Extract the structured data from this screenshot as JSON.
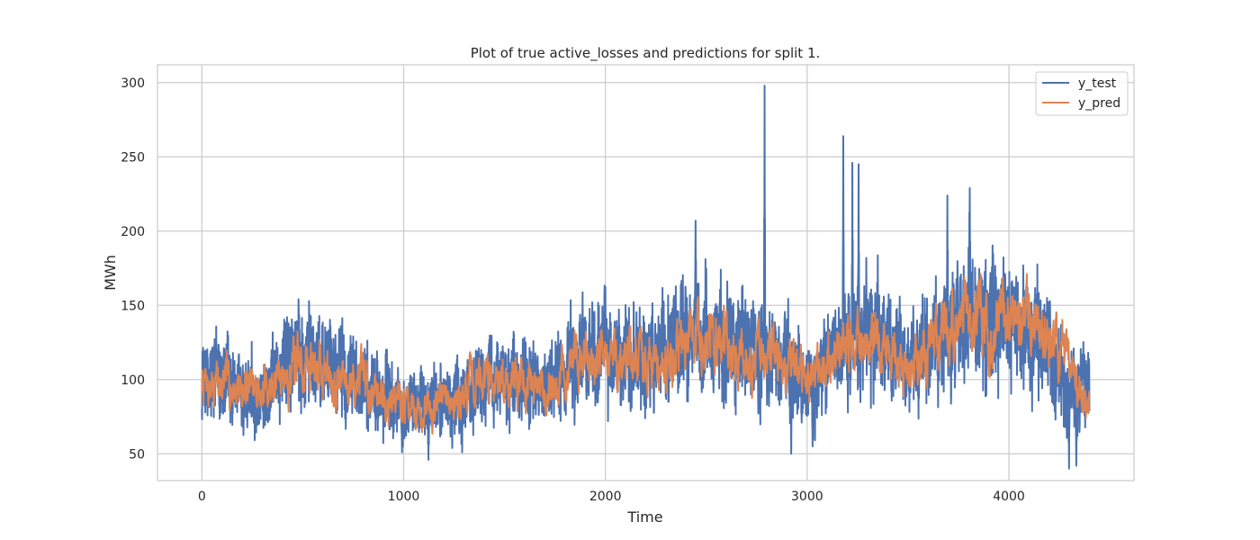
{
  "chart_data": {
    "type": "line",
    "title": "Plot of true active_losses and predictions for split 1.",
    "xlabel": "Time",
    "ylabel": "MWh",
    "xlim": [
      -220,
      4620
    ],
    "ylim": [
      32,
      312
    ],
    "xticks": [
      0,
      1000,
      2000,
      3000,
      4000
    ],
    "yticks": [
      50,
      100,
      150,
      200,
      250,
      300
    ],
    "grid": true,
    "legend_position": "top-right",
    "n_points": 4400,
    "series": [
      {
        "name": "y_test",
        "color": "#4c72b0",
        "anchors": [
          [
            0,
            95
          ],
          [
            100,
            103
          ],
          [
            200,
            90
          ],
          [
            300,
            85
          ],
          [
            400,
            112
          ],
          [
            500,
            118
          ],
          [
            600,
            112
          ],
          [
            700,
            105
          ],
          [
            800,
            95
          ],
          [
            900,
            90
          ],
          [
            1000,
            85
          ],
          [
            1100,
            82
          ],
          [
            1200,
            85
          ],
          [
            1300,
            88
          ],
          [
            1400,
            100
          ],
          [
            1500,
            98
          ],
          [
            1600,
            100
          ],
          [
            1700,
            95
          ],
          [
            1800,
            105
          ],
          [
            1900,
            118
          ],
          [
            2000,
            118
          ],
          [
            2100,
            115
          ],
          [
            2200,
            115
          ],
          [
            2300,
            118
          ],
          [
            2400,
            130
          ],
          [
            2500,
            130
          ],
          [
            2600,
            128
          ],
          [
            2700,
            118
          ],
          [
            2800,
            115
          ],
          [
            2900,
            110
          ],
          [
            3000,
            95
          ],
          [
            3100,
            110
          ],
          [
            3200,
            125
          ],
          [
            3300,
            135
          ],
          [
            3400,
            120
          ],
          [
            3500,
            108
          ],
          [
            3600,
            120
          ],
          [
            3700,
            135
          ],
          [
            3800,
            145
          ],
          [
            3900,
            140
          ],
          [
            4000,
            140
          ],
          [
            4100,
            130
          ],
          [
            4200,
            120
          ],
          [
            4300,
            90
          ],
          [
            4400,
            100
          ]
        ],
        "spikes": [
          [
            2789,
            298
          ],
          [
            3179,
            264
          ],
          [
            3224,
            246
          ],
          [
            3255,
            245
          ],
          [
            3806,
            229
          ],
          [
            3695,
            224
          ],
          [
            2447,
            207
          ],
          [
            3027,
            55
          ],
          [
            2921,
            50
          ],
          [
            4334,
            42
          ],
          [
            1123,
            46
          ],
          [
            1290,
            51
          ],
          [
            992,
            51
          ],
          [
            4298,
            40
          ]
        ]
      },
      {
        "name": "y_pred",
        "color": "#dd8452",
        "anchors": [
          [
            0,
            95
          ],
          [
            100,
            98
          ],
          [
            200,
            95
          ],
          [
            300,
            92
          ],
          [
            400,
            105
          ],
          [
            500,
            110
          ],
          [
            600,
            108
          ],
          [
            700,
            100
          ],
          [
            800,
            96
          ],
          [
            900,
            92
          ],
          [
            1000,
            85
          ],
          [
            1100,
            82
          ],
          [
            1200,
            85
          ],
          [
            1300,
            90
          ],
          [
            1400,
            105
          ],
          [
            1500,
            100
          ],
          [
            1600,
            100
          ],
          [
            1700,
            92
          ],
          [
            1800,
            105
          ],
          [
            1900,
            115
          ],
          [
            2000,
            115
          ],
          [
            2100,
            115
          ],
          [
            2200,
            112
          ],
          [
            2300,
            115
          ],
          [
            2400,
            125
          ],
          [
            2500,
            128
          ],
          [
            2600,
            125
          ],
          [
            2700,
            112
          ],
          [
            2800,
            118
          ],
          [
            2900,
            110
          ],
          [
            3000,
            95
          ],
          [
            3100,
            112
          ],
          [
            3200,
            120
          ],
          [
            3300,
            128
          ],
          [
            3400,
            120
          ],
          [
            3500,
            105
          ],
          [
            3600,
            118
          ],
          [
            3700,
            132
          ],
          [
            3800,
            145
          ],
          [
            3900,
            135
          ],
          [
            4000,
            140
          ],
          [
            4100,
            135
          ],
          [
            4200,
            125
          ],
          [
            4300,
            110
          ],
          [
            4400,
            85
          ]
        ]
      }
    ]
  }
}
